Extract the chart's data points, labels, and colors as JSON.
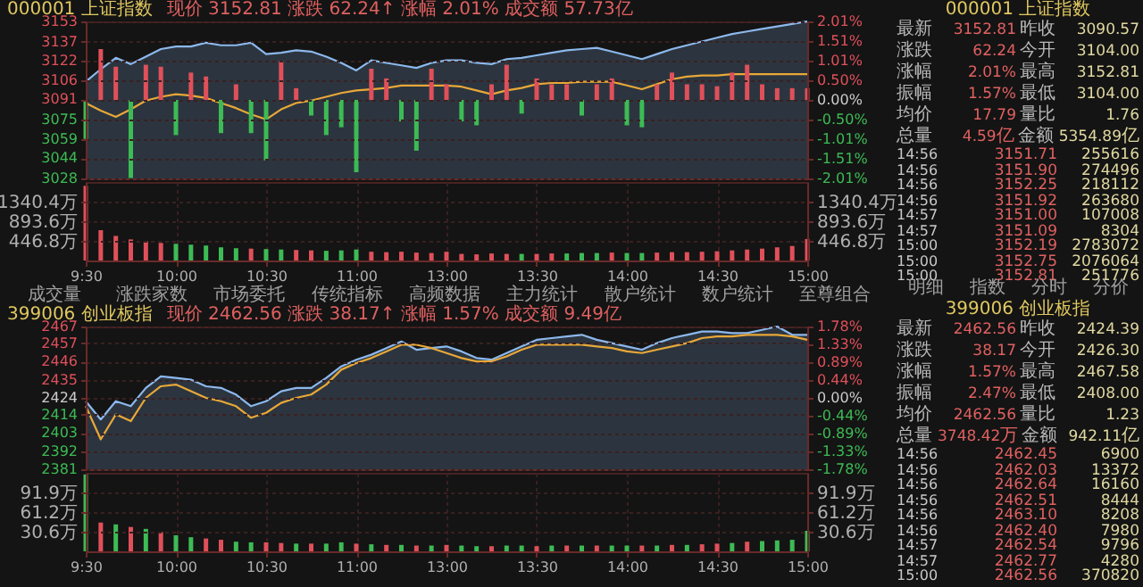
{
  "chart_data": [
    {
      "type": "line",
      "title": "000001 上证指数",
      "subtitle": "现价 3152.81  涨跌 62.24↑  涨幅 2.01%  成交额 57.73亿",
      "categories": [
        null,
        null,
        null,
        null,
        null,
        null,
        null,
        null,
        null,
        null,
        null,
        null,
        null,
        null,
        null,
        null,
        null,
        null,
        null,
        null,
        null,
        null,
        null,
        null,
        null,
        null,
        null,
        null,
        null,
        null,
        null,
        null,
        null,
        null,
        null,
        null,
        null,
        null,
        null,
        null,
        null,
        null,
        null,
        null,
        null,
        null,
        null,
        null,
        null
      ],
      "ylim": [
        3028,
        3153
      ],
      "yticks": [
        3153,
        3137,
        3122,
        3106,
        3091,
        3075,
        3059,
        3044,
        3028
      ],
      "y2lim": [
        -2.01,
        2.01
      ],
      "y2ticks": [
        {
          "value": 2.01,
          "label": "2.01%"
        },
        {
          "value": 1.51,
          "label": "1.51%"
        },
        {
          "value": 1.01,
          "label": "1.01%"
        },
        {
          "value": 0.5,
          "label": "0.50%"
        },
        {
          "value": 0,
          "label": "0.00%"
        },
        {
          "value": -0.5,
          "label": "-0.50%"
        },
        {
          "value": -1.01,
          "label": "-1.01%"
        },
        {
          "value": -1.51,
          "label": "-1.51%"
        },
        {
          "value": -2.01,
          "label": "-2.01%"
        }
      ],
      "grid": true,
      "tick_labels": "y",
      "series": [
        {
          "type": "area",
          "color": "#8cb8ec",
          "values": [
            3105,
            3115,
            3124,
            3119,
            3125,
            3131,
            3133,
            3133,
            3136,
            3134,
            3134,
            3136,
            3127,
            3128,
            3130,
            3129,
            3125,
            3120,
            3114,
            3122,
            3120,
            3118,
            3116,
            3120,
            3122,
            3122,
            3120,
            3119,
            3123,
            3124,
            3126,
            3128,
            3130,
            3131,
            3132,
            3129,
            3126,
            3123,
            3127,
            3131,
            3134,
            3137,
            3140,
            3143,
            3145,
            3147,
            3149,
            3151,
            3153
          ]
        },
        {
          "type": "line",
          "color": "#e8a838",
          "values": [
            3088,
            3082,
            3077,
            3083,
            3090,
            3093,
            3095,
            3094,
            3092,
            3088,
            3084,
            3079,
            3075,
            3083,
            3088,
            3090,
            3093,
            3096,
            3098,
            3099,
            3100,
            3102,
            3102,
            3102,
            3102,
            3101,
            3098,
            3095,
            3098,
            3100,
            3103,
            3104,
            3104,
            3105,
            3105,
            3105,
            3102,
            3099,
            3103,
            3107,
            3109,
            3110,
            3110,
            3111,
            3111,
            3111,
            3111,
            3111,
            3111
          ]
        },
        {
          "type": "bar",
          "axis": "y2",
          "values": [
            -1.0,
            1.3,
            0.85,
            -2.0,
            0.9,
            0.85,
            -0.9,
            0.7,
            0.6,
            -0.85,
            0.4,
            -0.85,
            -1.55,
            1.0,
            0.3,
            -0.4,
            -0.9,
            -0.7,
            -1.85,
            0.8,
            0.55,
            -0.55,
            -1.3,
            0.8,
            0.4,
            -0.55,
            -0.65,
            0.4,
            0.9,
            -0.35,
            0.55,
            0.4,
            0.4,
            -0.4,
            0.4,
            0.55,
            -0.65,
            -0.7,
            0.4,
            0.7,
            0.4,
            0.4,
            0.35,
            0.7,
            0.9,
            0.4,
            0.3,
            0.3,
            0.3
          ],
          "colors": [
            "#3dbb55",
            "#e0505a",
            "#e0505a",
            "#3dbb55",
            "#e0505a",
            "#e0505a",
            "#3dbb55",
            "#e0505a",
            "#e0505a",
            "#3dbb55",
            "#e0505a",
            "#3dbb55",
            "#3dbb55",
            "#e0505a",
            "#e0505a",
            "#3dbb55",
            "#3dbb55",
            "#3dbb55",
            "#3dbb55",
            "#e0505a",
            "#e0505a",
            "#3dbb55",
            "#3dbb55",
            "#e0505a",
            "#e0505a",
            "#3dbb55",
            "#3dbb55",
            "#e0505a",
            "#e0505a",
            "#3dbb55",
            "#e0505a",
            "#e0505a",
            "#e0505a",
            "#3dbb55",
            "#e0505a",
            "#e0505a",
            "#3dbb55",
            "#3dbb55",
            "#e0505a",
            "#e0505a",
            "#e0505a",
            "#e0505a",
            "#e0505a",
            "#e0505a",
            "#e0505a",
            "#e0505a",
            "#e0505a",
            "#e0505a",
            "#e0505a"
          ]
        }
      ]
    },
    {
      "type": "bar",
      "categories": [
        "9:30",
        null,
        null,
        null,
        null,
        null,
        "10:00",
        null,
        null,
        null,
        null,
        null,
        "10:30",
        null,
        null,
        null,
        null,
        null,
        "11:00",
        null,
        null,
        null,
        null,
        null,
        "13:00",
        null,
        null,
        null,
        null,
        null,
        "13:30",
        null,
        null,
        null,
        null,
        null,
        "14:00",
        null,
        null,
        null,
        null,
        null,
        "14:30",
        null,
        null,
        null,
        null,
        null,
        "15:00"
      ],
      "ylim": [
        0,
        1787.2
      ],
      "yticks": [
        {
          "value": 446.8,
          "label": "446.8万"
        },
        {
          "value": 893.6,
          "label": "893.6万"
        },
        {
          "value": 1340.4,
          "label": "1340.4万"
        }
      ],
      "y2lim": [
        0,
        1787.2
      ],
      "y2ticks": [
        {
          "value": 446.8,
          "label": "446.8万"
        },
        {
          "value": 893.6,
          "label": "893.6万"
        },
        {
          "value": 1340.4,
          "label": "1340.4万"
        }
      ],
      "grid": true,
      "values": [
        1700,
        690,
        560,
        480,
        440,
        400,
        380,
        360,
        340,
        300,
        280,
        270,
        260,
        250,
        240,
        230,
        220,
        230,
        250,
        200,
        190,
        200,
        180,
        170,
        200,
        150,
        140,
        160,
        150,
        150,
        150,
        160,
        160,
        170,
        170,
        180,
        170,
        170,
        180,
        190,
        190,
        200,
        210,
        230,
        250,
        270,
        300,
        330,
        490
      ],
      "colors": [
        "#e0505a",
        "#e0505a",
        "#e0505a",
        "#e0505a",
        "#e0505a",
        "#e0505a",
        "#3dbb55",
        "#3dbb55",
        "#3dbb55",
        "#3dbb55",
        "#3dbb55",
        "#e0505a",
        "#3dbb55",
        "#3dbb55",
        "#e0505a",
        "#e0505a",
        "#3dbb55",
        "#3dbb55",
        "#3dbb55",
        "#e0505a",
        "#e0505a",
        "#e0505a",
        "#e0505a",
        "#e0505a",
        "#e0505a",
        "#e0505a",
        "#e0505a",
        "#e0505a",
        "#e0505a",
        "#3dbb55",
        "#e0505a",
        "#e0505a",
        "#3dbb55",
        "#3dbb55",
        "#3dbb55",
        "#e0505a",
        "#3dbb55",
        "#3dbb55",
        "#e0505a",
        "#e0505a",
        "#e0505a",
        "#e0505a",
        "#e0505a",
        "#e0505a",
        "#e0505a",
        "#e0505a",
        "#e0505a",
        "#e0505a",
        "#e0505a"
      ]
    },
    {
      "type": "other",
      "annotations": [
        "成交量 涨跌家数 市场委托 传统指标 高频数据 主力统计 散户统计 数户统计 至尊组合"
      ]
    },
    {
      "type": "line",
      "title": "399006 创业板指",
      "subtitle": "现价 2462.56  涨跌 38.17↑  涨幅 1.57%  成交额 9.49亿",
      "categories": [
        null,
        null,
        null,
        null,
        null,
        null,
        null,
        null,
        null,
        null,
        null,
        null,
        null,
        null,
        null,
        null,
        null,
        null,
        null,
        null,
        null,
        null,
        null,
        null,
        null,
        null,
        null,
        null,
        null,
        null,
        null,
        null,
        null,
        null,
        null,
        null,
        null,
        null,
        null,
        null,
        null,
        null,
        null,
        null,
        null,
        null,
        null,
        null,
        null
      ],
      "ylim": [
        2381,
        2467
      ],
      "yticks": [
        2467,
        2457,
        2446,
        2435,
        2424,
        2414,
        2403,
        2392,
        2381
      ],
      "y2lim": [
        -1.78,
        1.78
      ],
      "y2ticks": [
        {
          "value": 1.78,
          "label": "1.78%"
        },
        {
          "value": 1.33,
          "label": "1.33%"
        },
        {
          "value": 0.89,
          "label": "0.89%"
        },
        {
          "value": 0.44,
          "label": "0.44%"
        },
        {
          "value": 0,
          "label": "0.00%"
        },
        {
          "value": -0.44,
          "label": "-0.44%"
        },
        {
          "value": -0.89,
          "label": "-0.89%"
        },
        {
          "value": -1.33,
          "label": "-1.33%"
        },
        {
          "value": -1.78,
          "label": "-1.78%"
        }
      ],
      "grid": true,
      "tick_labels": "y",
      "series": [
        {
          "type": "area",
          "color": "#8cb8ec",
          "values": [
            2422,
            2411,
            2422,
            2419,
            2430,
            2437,
            2436,
            2435,
            2431,
            2430,
            2426,
            2419,
            2422,
            2428,
            2430,
            2430,
            2436,
            2443,
            2447,
            2450,
            2454,
            2458,
            2453,
            2454,
            2455,
            2452,
            2448,
            2447,
            2451,
            2455,
            2459,
            2460,
            2461,
            2462,
            2459,
            2457,
            2455,
            2453,
            2457,
            2460,
            2462,
            2464,
            2464,
            2463,
            2463,
            2465,
            2467,
            2462,
            2462
          ]
        },
        {
          "type": "line",
          "color": "#e8a838",
          "values": [
            2419,
            2399,
            2414,
            2410,
            2424,
            2431,
            2432,
            2428,
            2424,
            2422,
            2419,
            2412,
            2415,
            2421,
            2424,
            2426,
            2432,
            2441,
            2445,
            2448,
            2452,
            2456,
            2456,
            2454,
            2451,
            2448,
            2446,
            2446,
            2449,
            2453,
            2456,
            2456,
            2456,
            2456,
            2455,
            2454,
            2452,
            2451,
            2453,
            2455,
            2457,
            2460,
            2461,
            2461,
            2462,
            2462,
            2462,
            2461,
            2459
          ]
        }
      ]
    },
    {
      "type": "bar",
      "categories": [
        "9:30",
        null,
        null,
        null,
        null,
        null,
        "10:00",
        null,
        null,
        null,
        null,
        null,
        "10:30",
        null,
        null,
        null,
        null,
        null,
        "11:00",
        null,
        null,
        null,
        null,
        null,
        "13:00",
        null,
        null,
        null,
        null,
        null,
        "13:30",
        null,
        null,
        null,
        null,
        null,
        "14:00",
        null,
        null,
        null,
        null,
        null,
        "14:30",
        null,
        null,
        null,
        null,
        null,
        "15:00"
      ],
      "ylim": [
        0,
        122.5
      ],
      "yticks": [
        {
          "value": 30.6,
          "label": "30.6万"
        },
        {
          "value": 61.2,
          "label": "61.2万"
        },
        {
          "value": 91.9,
          "label": "91.9万"
        }
      ],
      "y2lim": [
        0,
        122.5
      ],
      "y2ticks": [
        {
          "value": 30.6,
          "label": "30.6万"
        },
        {
          "value": 61.2,
          "label": "61.2万"
        },
        {
          "value": 91.9,
          "label": "91.9万"
        }
      ],
      "grid": true,
      "values": [
        120,
        45,
        42,
        38,
        35,
        30,
        25,
        22,
        20,
        18,
        15,
        14,
        14,
        13,
        12,
        12,
        12,
        14,
        12,
        11,
        10,
        10,
        9,
        9,
        10,
        9,
        8,
        8,
        9,
        9,
        8,
        9,
        9,
        9,
        9,
        9,
        9,
        9,
        9,
        10,
        10,
        11,
        12,
        13,
        15,
        16,
        17,
        18,
        32
      ],
      "colors": [
        "#3dbb55",
        "#e0505a",
        "#3dbb55",
        "#e0505a",
        "#3dbb55",
        "#e0505a",
        "#3dbb55",
        "#3dbb55",
        "#e0505a",
        "#e0505a",
        "#3dbb55",
        "#3dbb55",
        "#e0505a",
        "#e0505a",
        "#3dbb55",
        "#e0505a",
        "#3dbb55",
        "#3dbb55",
        "#e0505a",
        "#3dbb55",
        "#e0505a",
        "#3dbb55",
        "#e0505a",
        "#3dbb55",
        "#e0505a",
        "#3dbb55",
        "#3dbb55",
        "#e0505a",
        "#3dbb55",
        "#3dbb55",
        "#e0505a",
        "#3dbb55",
        "#e0505a",
        "#3dbb55",
        "#e0505a",
        "#3dbb55",
        "#3dbb55",
        "#e0505a",
        "#3dbb55",
        "#e0505a",
        "#3dbb55",
        "#e0505a",
        "#e0505a",
        "#3dbb55",
        "#e0505a",
        "#3dbb55",
        "#3dbb55",
        "#3dbb55",
        "#3dbb55"
      ]
    },
    {
      "type": "other",
      "title": "000001 上证指数",
      "annotations": [
        "最新 3152.81 昨收 3090.57",
        "涨跌 62.24 今开 3104.00",
        "涨幅 2.01% 最高 3152.81",
        "振幅 1.57% 最低 3104.00",
        "均价 17.79 量比 1.76",
        "总量 4.59亿 金额 5354.89亿",
        "14:56 3151.71 255616",
        "14:56 3151.90 274496",
        "14:56 3152.25 218112",
        "14:56 3151.92 263680",
        "14:57 3151.00 107008",
        "14:57 3151.09 8304",
        "15:00 3152.19 2783072",
        "15:00 3152.75 2076064",
        "15:00 3152.81 251776"
      ]
    },
    {
      "type": "other",
      "annotations": [
        "明细 指数 分时 分价"
      ]
    },
    {
      "type": "other",
      "title": "399006 创业板指",
      "annotations": [
        "最新 2462.56 昨收 2424.39",
        "涨跌 38.17 今开 2426.30",
        "涨幅 1.57% 最高 2467.58",
        "振幅 2.47% 最低 2408.00",
        "均价 2462.56 量比 1.23",
        "总量 3748.42万 金额 942.11亿",
        "14:56 2462.45 6900",
        "14:56 2462.03 13372",
        "14:56 2462.64 16160",
        "14:56 2462.51 8444",
        "14:56 2463.10 8208",
        "14:56 2462.40 7980",
        "14:57 2462.54 9796",
        "14:57 2462.77 4280",
        "15:00 2462.56 370820"
      ]
    }
  ]
}
